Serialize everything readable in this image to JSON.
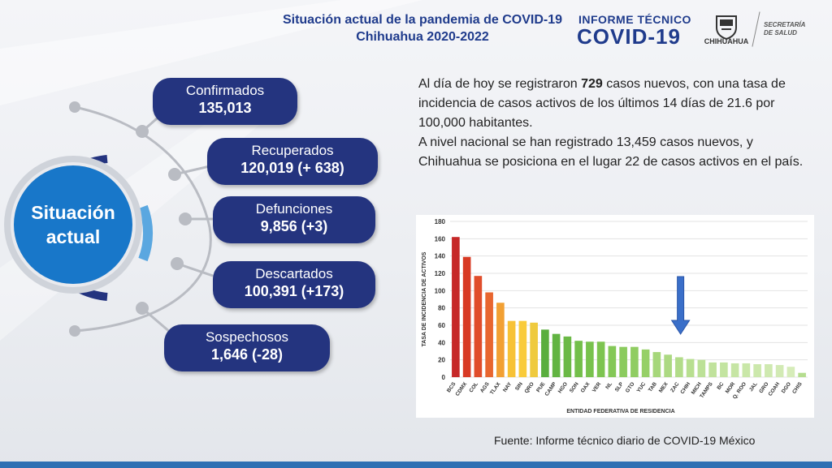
{
  "header": {
    "title_line1": "Situación actual de la pandemia de COVID-19",
    "title_line2": "Chihuahua 2020-2022",
    "informe": "INFORME TÉCNICO",
    "covid": "COVID-19",
    "chihuahua": "CHIHUAHUA",
    "secretaria_line1": "SECRETARÍA",
    "secretaria_line2": "DE SALUD"
  },
  "center_label_line1": "Situación",
  "center_label_line2": "actual",
  "stats": [
    {
      "label": "Confirmados",
      "value": "135,013"
    },
    {
      "label": "Recuperados",
      "value": "120,019 (+ 638)"
    },
    {
      "label": "Defunciones",
      "value": "9,856 (+3)"
    },
    {
      "label": "Descartados",
      "value": "100,391 (+173)"
    },
    {
      "label": "Sospechosos",
      "value": "1,646 (-28)"
    }
  ],
  "paragraph": {
    "p1_pre": "Al día de hoy se registraron ",
    "p1_bold": "729",
    "p1_post": " casos nuevos, con una tasa de incidencia de casos activos de los últimos 14 días de 21.6 por 100,000 habitantes.",
    "p2": "A nivel nacional se han registrado 13,459 casos nuevos, y Chihuahua se posiciona en el lugar 22 de casos activos en el país."
  },
  "source": "Fuente: Informe técnico diario de COVID-19 México",
  "chart_data": {
    "type": "bar",
    "xlabel": "ENTIDAD FEDERATIVA DE RESIDENCIA",
    "ylabel": "TASA DE INCIDENCIA DE ACTIVOS",
    "ylim": [
      0,
      180
    ],
    "yticks": [
      0,
      20,
      40,
      60,
      80,
      100,
      120,
      140,
      160,
      180
    ],
    "grid": true,
    "categories": [
      "BCS",
      "CDMX",
      "COL",
      "AGS",
      "TLAX",
      "NAY",
      "SIN",
      "QRO",
      "PUE",
      "CAMP",
      "HGO",
      "SON",
      "OAX",
      "VER",
      "NL",
      "SLP",
      "GTO",
      "YUC",
      "TAB",
      "MEX",
      "ZAC",
      "CHIH",
      "MICH",
      "TAMPS",
      "BC",
      "MOR",
      "Q. ROO",
      "JAL",
      "GRO",
      "COAH",
      "DGO",
      "CHIS"
    ],
    "values": [
      162,
      139,
      117,
      98,
      86,
      65,
      65,
      63,
      55,
      50,
      47,
      42,
      41,
      41,
      36,
      35,
      35,
      32,
      29,
      26,
      23,
      21,
      20,
      17,
      17,
      16,
      16,
      15,
      15,
      14,
      12,
      5
    ],
    "colors": [
      "#c62828",
      "#d83a24",
      "#e04d2b",
      "#e8662f",
      "#f2a033",
      "#f7c236",
      "#f9cb3a",
      "#efca3e",
      "#5aae3e",
      "#62b442",
      "#6bb946",
      "#73bf4a",
      "#78c24d",
      "#7dc450",
      "#84c857",
      "#8bcb5e",
      "#90cd62",
      "#96d067",
      "#a6d77a",
      "#acd982",
      "#b2dc89",
      "#b8df90",
      "#bce197",
      "#c0e29c",
      "#c3e4a0",
      "#c6e5a4",
      "#c9e7a8",
      "#cce8ac",
      "#cfe9b0",
      "#d2eab4",
      "#d6ecb9",
      "#b5dd8f"
    ],
    "annotation": "arrow-pointing-to-CHIH",
    "arrow_color": "#3a6fc9"
  }
}
